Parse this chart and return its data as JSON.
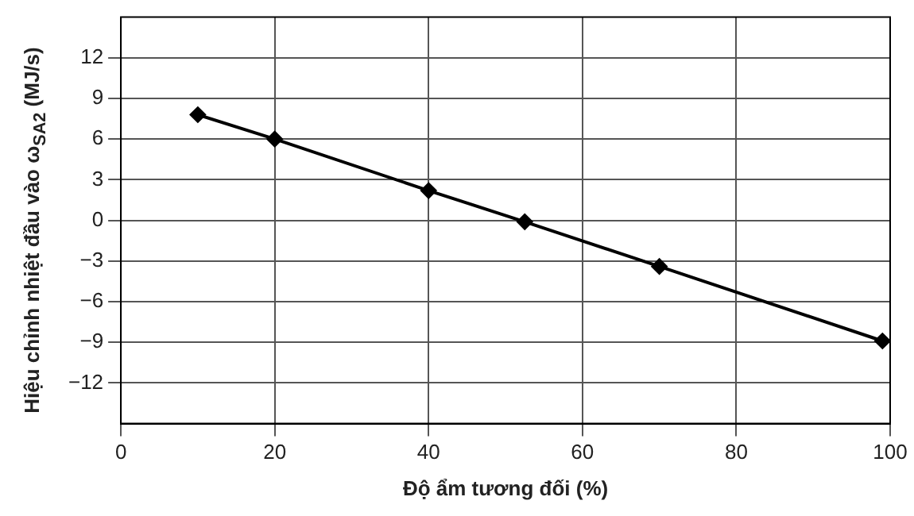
{
  "chart_data": {
    "type": "line",
    "xlabel": "Độ ẩm tương đối (%)",
    "ylabel": "Hiệu chỉnh nhiệt đầu vào ω$_{SA2}$ (MJ/s)",
    "x": [
      10,
      20,
      40,
      52.5,
      70,
      99
    ],
    "series": [
      {
        "color": "#000000",
        "values": [
          7.8,
          6,
          2.2,
          -0.1,
          -3.4,
          -8.9
        ]
      }
    ],
    "xlim": [
      0,
      100
    ],
    "xticks": [
      0,
      20,
      40,
      60,
      80,
      100
    ],
    "ylim": [
      -15,
      15
    ],
    "yticks": [
      -12,
      -9,
      -6,
      -3,
      0,
      3,
      6,
      9,
      12
    ],
    "grid": true,
    "marker": "diamond",
    "line_style": "solid",
    "legend": false
  }
}
